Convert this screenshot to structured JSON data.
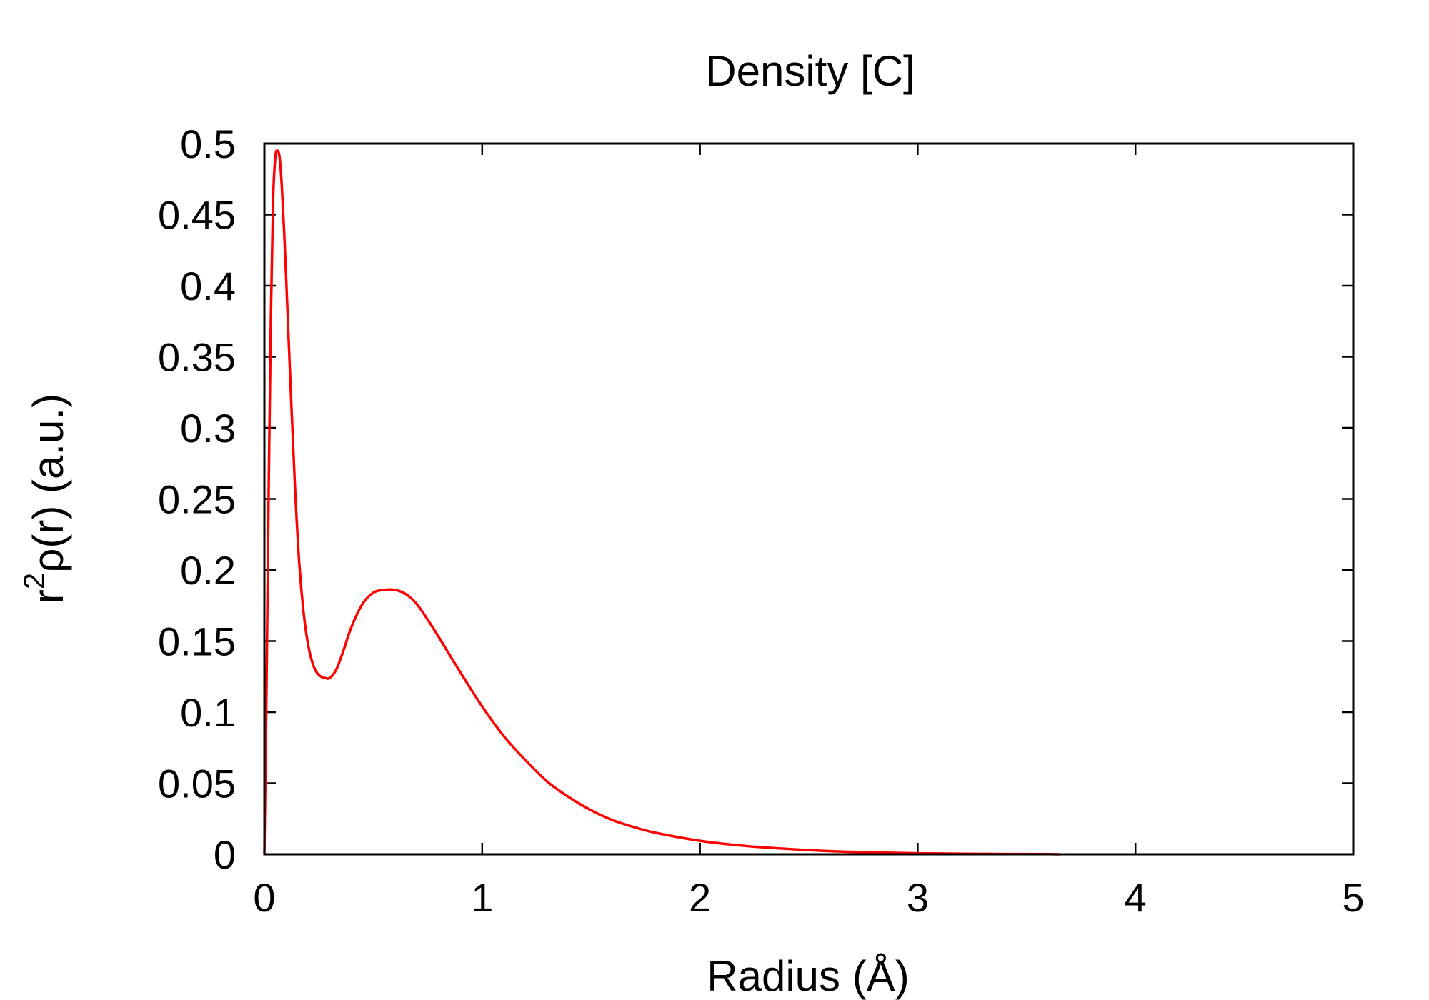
{
  "chart_data": {
    "type": "line",
    "title": "Density [C]",
    "xlabel": "Radius (Å)",
    "ylabel_base": "r",
    "ylabel_sup": "2",
    "ylabel_rest": "ρ(r) (a.u.)",
    "xlim": [
      0,
      5
    ],
    "ylim": [
      0,
      0.5
    ],
    "xticks": [
      0,
      1,
      2,
      3,
      4,
      5
    ],
    "xtick_labels": [
      "0",
      "1",
      "2",
      "3",
      "4",
      "5"
    ],
    "yticks": [
      0,
      0.05,
      0.1,
      0.15,
      0.2,
      0.25,
      0.3,
      0.35,
      0.4,
      0.45,
      0.5
    ],
    "ytick_labels": [
      "0",
      "0.05",
      "0.1",
      "0.15",
      "0.2",
      "0.25",
      "0.3",
      "0.35",
      "0.4",
      "0.45",
      "0.5"
    ],
    "grid": false,
    "series": [
      {
        "color": "#ff0000",
        "x": [
          0,
          0.01,
          0.02,
          0.03,
          0.04,
          0.05,
          0.06,
          0.07,
          0.08,
          0.09,
          0.1,
          0.12,
          0.14,
          0.16,
          0.18,
          0.2,
          0.22,
          0.24,
          0.26,
          0.28,
          0.3,
          0.33,
          0.36,
          0.4,
          0.45,
          0.5,
          0.55,
          0.6,
          0.65,
          0.7,
          0.75,
          0.8,
          0.9,
          1.0,
          1.1,
          1.2,
          1.3,
          1.4,
          1.5,
          1.6,
          1.7,
          1.8,
          2.0,
          2.2,
          2.4,
          2.6,
          2.8,
          3.0,
          3.2,
          3.4,
          3.6,
          3.65
        ],
        "y": [
          0,
          0.12,
          0.26,
          0.38,
          0.46,
          0.49,
          0.495,
          0.49,
          0.47,
          0.44,
          0.405,
          0.33,
          0.26,
          0.205,
          0.17,
          0.148,
          0.135,
          0.128,
          0.125,
          0.124,
          0.124,
          0.13,
          0.142,
          0.16,
          0.176,
          0.184,
          0.186,
          0.186,
          0.183,
          0.176,
          0.165,
          0.153,
          0.128,
          0.104,
          0.083,
          0.066,
          0.051,
          0.04,
          0.031,
          0.024,
          0.019,
          0.015,
          0.0095,
          0.006,
          0.0038,
          0.0022,
          0.0013,
          0.0007,
          0.0004,
          0.0002,
          0.0001,
          0
        ]
      }
    ]
  }
}
